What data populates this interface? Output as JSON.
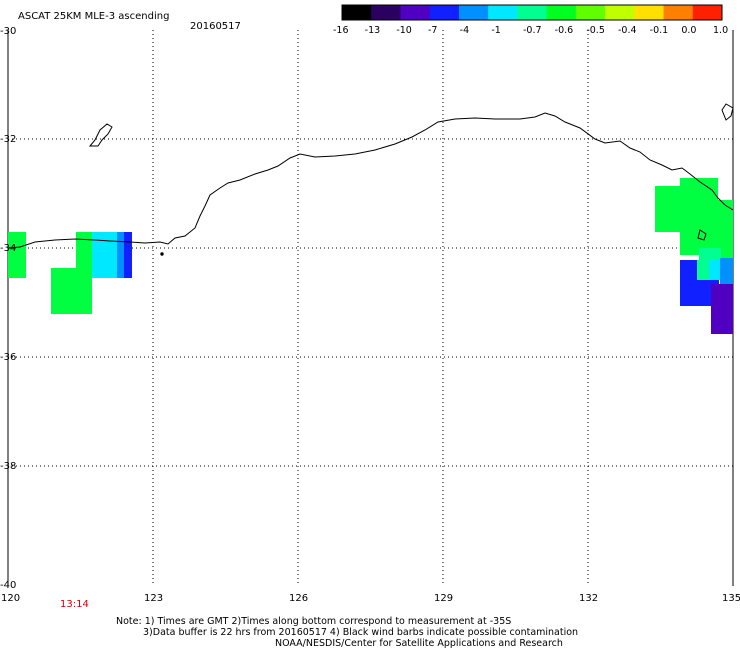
{
  "header": {
    "title": "ASCAT 25KM MLE-3 ascending",
    "date": "20160517"
  },
  "colorbar": {
    "labels": [
      "-16",
      "-13",
      "-10",
      "-7",
      "-4",
      "-1",
      "-0.7",
      "-0.6",
      "-0.5",
      "-0.4",
      "-0.1",
      "0.0",
      "1.0"
    ],
    "colors": [
      "#000000",
      "#2a0060",
      "#5000c0",
      "#1020ff",
      "#0090ff",
      "#00e8ff",
      "#00ff90",
      "#00ff20",
      "#60ff00",
      "#c0ff00",
      "#ffe000",
      "#ff8000",
      "#ff2000"
    ]
  },
  "axes": {
    "lon_ticks": [
      "120",
      "123",
      "126",
      "129",
      "132",
      "135"
    ],
    "lat_ticks": [
      "-30",
      "-32",
      "-34",
      "-36",
      "-38",
      "-40"
    ],
    "lon_range": [
      120,
      135
    ],
    "lat_range": [
      -30,
      -40
    ],
    "grid": "dotted"
  },
  "time_label": "13:14",
  "notes": {
    "line1": "Note: 1) Times are GMT 2)Times along bottom correspond to measurement at -35S",
    "line2": "3)Data buffer is 22 hrs from 20160517 4) Black wind barbs indicate possible contamination",
    "line3": "NOAA/NESDIS/Center for Satellite Applications and Research"
  },
  "colors": {
    "coastline": "#000000",
    "green_cell": "#00ff40",
    "cyan_cell": "#00e8ff",
    "blue_cell": "#1020ff",
    "violet_cell": "#5000c0",
    "timestamp": "#d00000"
  }
}
